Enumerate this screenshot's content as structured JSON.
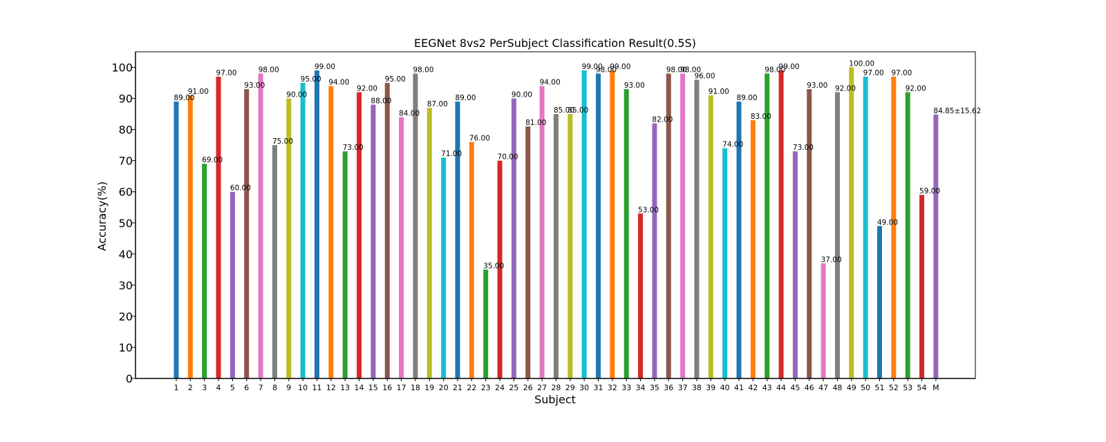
{
  "chart_data": {
    "type": "bar",
    "title": "EEGNet 8vs2 PerSubject Classification Result(0.5S)",
    "xlabel": "Subject",
    "ylabel": "Accuracy(%)",
    "ylim": [
      0,
      105
    ],
    "yticks": [
      0,
      10,
      20,
      30,
      40,
      50,
      60,
      70,
      80,
      90,
      100
    ],
    "grid": false,
    "categories": [
      "1",
      "2",
      "3",
      "4",
      "5",
      "6",
      "7",
      "8",
      "9",
      "10",
      "11",
      "12",
      "13",
      "14",
      "15",
      "16",
      "17",
      "18",
      "19",
      "20",
      "21",
      "22",
      "23",
      "24",
      "25",
      "26",
      "27",
      "28",
      "29",
      "30",
      "31",
      "32",
      "33",
      "34",
      "35",
      "36",
      "37",
      "38",
      "39",
      "40",
      "41",
      "42",
      "43",
      "44",
      "45",
      "46",
      "47",
      "48",
      "49",
      "50",
      "51",
      "52",
      "53",
      "54",
      "M"
    ],
    "values": [
      89,
      91,
      69,
      97,
      60,
      93,
      98,
      75,
      90,
      95,
      99,
      94,
      73,
      92,
      88,
      95,
      84,
      98,
      87,
      71,
      89,
      76,
      35,
      70,
      90,
      81,
      94,
      85,
      85,
      99,
      98,
      99,
      93,
      53,
      82,
      98,
      98,
      96,
      91,
      74,
      89,
      83,
      98,
      99,
      73,
      93,
      37,
      92,
      100,
      97,
      49,
      97,
      92,
      59,
      84.85
    ],
    "data_labels": [
      "89.00",
      "91.00",
      "69.00",
      "97.00",
      "60.00",
      "93.00",
      "98.00",
      "75.00",
      "90.00",
      "95.00",
      "99.00",
      "94.00",
      "73.00",
      "92.00",
      "88.00",
      "95.00",
      "84.00",
      "98.00",
      "87.00",
      "71.00",
      "89.00",
      "76.00",
      "35.00",
      "70.00",
      "90.00",
      "81.00",
      "94.00",
      "85.00",
      "85.00",
      "99.00",
      "98.00",
      "99.00",
      "93.00",
      "53.00",
      "82.00",
      "98.00",
      "98.00",
      "96.00",
      "91.00",
      "74.00",
      "89.00",
      "83.00",
      "98.00",
      "99.00",
      "73.00",
      "93.00",
      "37.00",
      "92.00",
      "100.00",
      "97.00",
      "49.00",
      "97.00",
      "92.00",
      "59.00",
      "84.85±15.62"
    ],
    "palette": [
      "#1f77b4",
      "#ff7f0e",
      "#2ca02c",
      "#d62728",
      "#9467bd",
      "#8c564b",
      "#e377c2",
      "#7f7f7f",
      "#bcbd22",
      "#17becf"
    ],
    "mean_label_color": "#ff0000"
  }
}
